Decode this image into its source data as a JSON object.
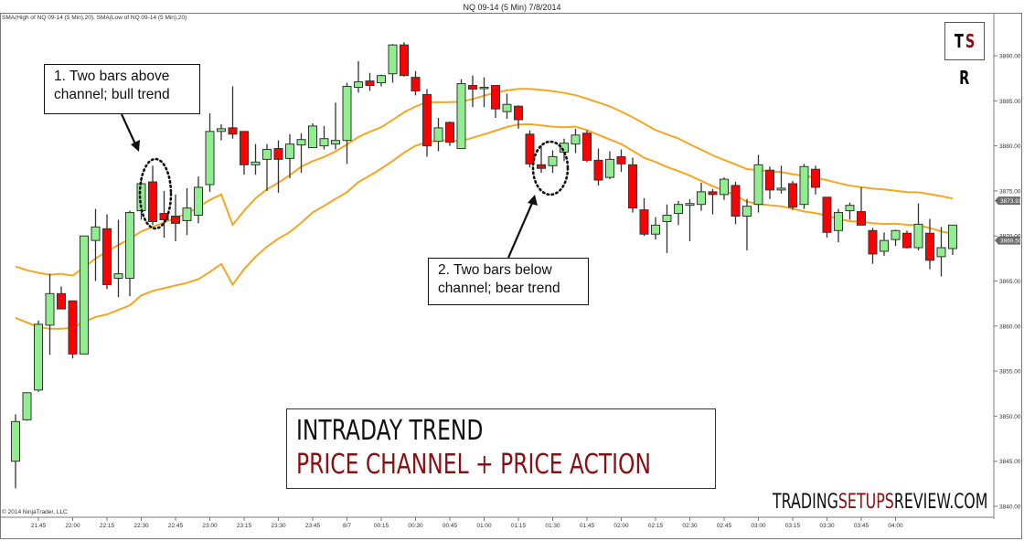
{
  "header": {
    "title": "NQ 09-14 (5 Min)  7/8/2014",
    "indicator_legend": "SMA(High of NQ 09-14 (5 Min),20), SMA(Low of NQ 09-14 (5 Min),20)"
  },
  "footer": {
    "copyright": "© 2014 NinjaTrader, LLC"
  },
  "logo": {
    "t": "T",
    "s": "S",
    "r": "R"
  },
  "banner": {
    "line1": "INTRADAY TREND",
    "line2": "PRICE CHANNEL + PRICE ACTION"
  },
  "brand": {
    "part1": "TRADING",
    "part2": "SETUPS",
    "part3": "REVIEW.COM"
  },
  "annotations": [
    {
      "id": 1,
      "line1": "1. Two bars above",
      "line2": "channel; bull trend"
    },
    {
      "id": 2,
      "line1": "2. Two bars below",
      "line2": "channel; bear trend"
    }
  ],
  "colors": {
    "bull": "#90ee90",
    "bear": "#ff0000",
    "sma": "#f5a623",
    "brand_red": "#8b0f12",
    "axis": "#7a7a7a"
  },
  "chart_data": {
    "type": "candlestick",
    "title": "NQ 09-14 (5 Min)  7/8/2014",
    "xlabel": "",
    "ylabel": "",
    "ylim": [
      3838.5,
      3893
    ],
    "y_ticks": [
      3840,
      3845,
      3850,
      3855,
      3860,
      3865,
      3870,
      3875,
      3880,
      3885,
      3890
    ],
    "y_tick_labels": [
      "3840.00",
      "3845.00",
      "3850.00",
      "3855.00",
      "3860.00",
      "3865.00",
      "3870.00",
      "3875.00",
      "3880.00",
      "3885.00",
      "3890.00"
    ],
    "x_tick_labels": [
      "21:45",
      "22:00",
      "22:15",
      "22:30",
      "22:45",
      "23:00",
      "23:15",
      "23:30",
      "23:45",
      "8/7",
      "00:15",
      "00:30",
      "00:45",
      "01:00",
      "01:15",
      "01:30",
      "01:45",
      "02:00",
      "02:15",
      "02:30",
      "02:45",
      "03:00",
      "03:15",
      "03:30",
      "03:45",
      "04:00"
    ],
    "price_markers": [
      {
        "label": "3873.91",
        "value": 3873.91
      },
      {
        "label": "3869.50",
        "value": 3869.5
      }
    ],
    "series": [
      {
        "name": "SMA(High of NQ 09-14 (5 Min),20)",
        "type": "line"
      },
      {
        "name": "SMA(Low of NQ 09-14 (5 Min),20)",
        "type": "line"
      }
    ],
    "candles": [
      {
        "o": 3845.0,
        "h": 3850.2,
        "l": 3842.0,
        "c": 3849.4
      },
      {
        "o": 3849.6,
        "h": 3852.6,
        "l": 3849.5,
        "c": 3852.6
      },
      {
        "o": 3852.9,
        "h": 3860.6,
        "l": 3852.7,
        "c": 3860.2
      },
      {
        "o": 3860.1,
        "h": 3865.8,
        "l": 3856.8,
        "c": 3863.6
      },
      {
        "o": 3863.6,
        "h": 3864.4,
        "l": 3861.9,
        "c": 3861.9
      },
      {
        "o": 3862.8,
        "h": 3862.8,
        "l": 3856.4,
        "c": 3856.9
      },
      {
        "o": 3856.9,
        "h": 3870.0,
        "l": 3856.9,
        "c": 3870.0
      },
      {
        "o": 3869.5,
        "h": 3873.0,
        "l": 3865.0,
        "c": 3871.0
      },
      {
        "o": 3870.8,
        "h": 3872.4,
        "l": 3864.1,
        "c": 3864.6
      },
      {
        "o": 3865.3,
        "h": 3871.8,
        "l": 3863.2,
        "c": 3865.8
      },
      {
        "o": 3865.3,
        "h": 3872.8,
        "l": 3863.3,
        "c": 3872.6
      },
      {
        "o": 3872.8,
        "h": 3876.5,
        "l": 3871.8,
        "c": 3875.8
      },
      {
        "o": 3876.0,
        "h": 3877.8,
        "l": 3871.2,
        "c": 3871.6
      },
      {
        "o": 3872.5,
        "h": 3875.0,
        "l": 3869.8,
        "c": 3871.8
      },
      {
        "o": 3872.2,
        "h": 3874.6,
        "l": 3869.4,
        "c": 3871.4
      },
      {
        "o": 3871.7,
        "h": 3875.3,
        "l": 3870.1,
        "c": 3873.1
      },
      {
        "o": 3872.3,
        "h": 3876.6,
        "l": 3871.4,
        "c": 3875.4
      },
      {
        "o": 3875.7,
        "h": 3883.6,
        "l": 3874.9,
        "c": 3881.6
      },
      {
        "o": 3881.6,
        "h": 3882.4,
        "l": 3880.6,
        "c": 3881.9
      },
      {
        "o": 3882.0,
        "h": 3886.6,
        "l": 3880.8,
        "c": 3881.3
      },
      {
        "o": 3881.6,
        "h": 3881.6,
        "l": 3876.8,
        "c": 3877.9
      },
      {
        "o": 3877.9,
        "h": 3880.2,
        "l": 3876.8,
        "c": 3878.2
      },
      {
        "o": 3878.5,
        "h": 3880.2,
        "l": 3875.0,
        "c": 3879.6
      },
      {
        "o": 3879.7,
        "h": 3880.6,
        "l": 3874.8,
        "c": 3878.5
      },
      {
        "o": 3878.6,
        "h": 3881.3,
        "l": 3876.4,
        "c": 3880.2
      },
      {
        "o": 3880.1,
        "h": 3881.4,
        "l": 3877.0,
        "c": 3880.7
      },
      {
        "o": 3879.8,
        "h": 3882.5,
        "l": 3879.8,
        "c": 3882.2
      },
      {
        "o": 3880.0,
        "h": 3882.2,
        "l": 3879.6,
        "c": 3880.8
      },
      {
        "o": 3880.2,
        "h": 3884.8,
        "l": 3879.6,
        "c": 3880.6
      },
      {
        "o": 3880.6,
        "h": 3887.0,
        "l": 3878.0,
        "c": 3886.6
      },
      {
        "o": 3886.5,
        "h": 3889.4,
        "l": 3885.9,
        "c": 3887.1
      },
      {
        "o": 3887.2,
        "h": 3888.1,
        "l": 3886.1,
        "c": 3886.7
      },
      {
        "o": 3887.0,
        "h": 3887.9,
        "l": 3886.6,
        "c": 3887.8
      },
      {
        "o": 3888.0,
        "h": 3891.3,
        "l": 3887.0,
        "c": 3891.2
      },
      {
        "o": 3891.2,
        "h": 3891.5,
        "l": 3887.7,
        "c": 3887.8
      },
      {
        "o": 3887.6,
        "h": 3888.3,
        "l": 3885.6,
        "c": 3886.1
      },
      {
        "o": 3885.7,
        "h": 3886.3,
        "l": 3878.8,
        "c": 3880.0
      },
      {
        "o": 3880.5,
        "h": 3883.1,
        "l": 3879.4,
        "c": 3882.0
      },
      {
        "o": 3882.6,
        "h": 3882.7,
        "l": 3880.0,
        "c": 3880.4
      },
      {
        "o": 3879.7,
        "h": 3887.4,
        "l": 3879.7,
        "c": 3886.9
      },
      {
        "o": 3886.7,
        "h": 3887.8,
        "l": 3884.3,
        "c": 3886.3
      },
      {
        "o": 3886.5,
        "h": 3887.6,
        "l": 3884.3,
        "c": 3886.5
      },
      {
        "o": 3886.7,
        "h": 3886.7,
        "l": 3883.1,
        "c": 3884.1
      },
      {
        "o": 3883.8,
        "h": 3885.8,
        "l": 3883.0,
        "c": 3884.6
      },
      {
        "o": 3884.4,
        "h": 3884.5,
        "l": 3881.9,
        "c": 3882.9
      },
      {
        "o": 3881.3,
        "h": 3881.7,
        "l": 3877.6,
        "c": 3878.0
      },
      {
        "o": 3877.9,
        "h": 3880.0,
        "l": 3877.0,
        "c": 3877.5
      },
      {
        "o": 3877.8,
        "h": 3879.5,
        "l": 3877.0,
        "c": 3878.8
      },
      {
        "o": 3879.3,
        "h": 3880.8,
        "l": 3878.3,
        "c": 3880.3
      },
      {
        "o": 3880.2,
        "h": 3881.9,
        "l": 3879.2,
        "c": 3881.2
      },
      {
        "o": 3881.4,
        "h": 3881.7,
        "l": 3878.2,
        "c": 3878.4
      },
      {
        "o": 3878.4,
        "h": 3879.7,
        "l": 3875.6,
        "c": 3876.2
      },
      {
        "o": 3876.5,
        "h": 3879.4,
        "l": 3876.3,
        "c": 3878.5
      },
      {
        "o": 3878.8,
        "h": 3879.6,
        "l": 3877.1,
        "c": 3878.0
      },
      {
        "o": 3877.9,
        "h": 3878.7,
        "l": 3872.6,
        "c": 3873.1
      },
      {
        "o": 3872.9,
        "h": 3874.2,
        "l": 3870.0,
        "c": 3870.2
      },
      {
        "o": 3870.2,
        "h": 3872.1,
        "l": 3869.6,
        "c": 3871.2
      },
      {
        "o": 3871.6,
        "h": 3873.5,
        "l": 3868.1,
        "c": 3872.3
      },
      {
        "o": 3872.5,
        "h": 3873.9,
        "l": 3871.2,
        "c": 3873.5
      },
      {
        "o": 3873.4,
        "h": 3874.1,
        "l": 3869.4,
        "c": 3873.6
      },
      {
        "o": 3873.5,
        "h": 3875.9,
        "l": 3872.8,
        "c": 3874.9
      },
      {
        "o": 3874.9,
        "h": 3875.2,
        "l": 3872.4,
        "c": 3874.6
      },
      {
        "o": 3874.6,
        "h": 3876.5,
        "l": 3874.0,
        "c": 3876.3
      },
      {
        "o": 3875.6,
        "h": 3876.0,
        "l": 3871.3,
        "c": 3872.2
      },
      {
        "o": 3872.2,
        "h": 3874.1,
        "l": 3868.4,
        "c": 3873.3
      },
      {
        "o": 3873.5,
        "h": 3879.0,
        "l": 3872.6,
        "c": 3877.9
      },
      {
        "o": 3877.3,
        "h": 3877.7,
        "l": 3874.1,
        "c": 3875.1
      },
      {
        "o": 3875.1,
        "h": 3877.8,
        "l": 3874.7,
        "c": 3875.3
      },
      {
        "o": 3875.8,
        "h": 3876.1,
        "l": 3872.9,
        "c": 3873.2
      },
      {
        "o": 3873.5,
        "h": 3878.0,
        "l": 3873.0,
        "c": 3877.7
      },
      {
        "o": 3877.4,
        "h": 3877.8,
        "l": 3874.6,
        "c": 3875.4
      },
      {
        "o": 3874.3,
        "h": 3874.3,
        "l": 3869.8,
        "c": 3870.4
      },
      {
        "o": 3870.6,
        "h": 3873.0,
        "l": 3869.3,
        "c": 3872.6
      },
      {
        "o": 3872.8,
        "h": 3873.7,
        "l": 3871.8,
        "c": 3873.4
      },
      {
        "o": 3872.7,
        "h": 3875.4,
        "l": 3871.4,
        "c": 3871.2
      },
      {
        "o": 3870.6,
        "h": 3870.9,
        "l": 3866.9,
        "c": 3868.0
      },
      {
        "o": 3868.3,
        "h": 3870.4,
        "l": 3867.8,
        "c": 3869.5
      },
      {
        "o": 3869.6,
        "h": 3870.7,
        "l": 3868.9,
        "c": 3870.6
      },
      {
        "o": 3870.3,
        "h": 3870.6,
        "l": 3868.6,
        "c": 3868.7
      },
      {
        "o": 3868.7,
        "h": 3873.6,
        "l": 3868.4,
        "c": 3871.3
      },
      {
        "o": 3870.3,
        "h": 3871.9,
        "l": 3866.3,
        "c": 3867.3
      },
      {
        "o": 3867.7,
        "h": 3871.0,
        "l": 3865.5,
        "c": 3868.7
      },
      {
        "o": 3868.6,
        "h": 3870.9,
        "l": 3867.9,
        "c": 3871.2
      }
    ]
  }
}
